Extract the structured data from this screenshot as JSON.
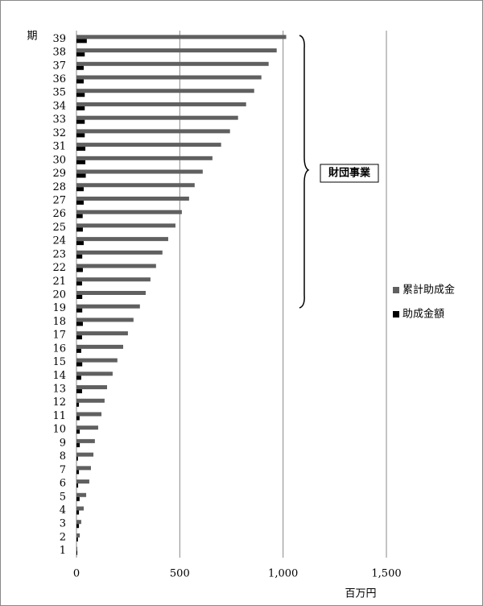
{
  "chart_data": {
    "type": "hbar",
    "y_label": "期",
    "x_label": "百万円",
    "annotation": "財団事業",
    "categories": [
      "1",
      "2",
      "3",
      "4",
      "5",
      "6",
      "7",
      "8",
      "9",
      "10",
      "11",
      "12",
      "13",
      "14",
      "15",
      "16",
      "17",
      "18",
      "19",
      "20",
      "21",
      "22",
      "23",
      "24",
      "25",
      "26",
      "27",
      "28",
      "29",
      "30",
      "31",
      "32",
      "33",
      "34",
      "35",
      "36",
      "37",
      "38",
      "39"
    ],
    "series": [
      {
        "name": "累計助成金",
        "color": "#606060",
        "values": [
          4,
          16,
          23,
          35,
          47,
          62,
          70,
          82,
          89,
          105,
          121,
          136,
          148,
          175,
          198,
          226,
          249,
          276,
          307,
          335,
          358,
          385,
          416,
          444,
          479,
          510,
          545,
          572,
          611,
          658,
          700,
          743,
          782,
          821,
          860,
          895,
          930,
          969,
          1015
        ]
      },
      {
        "name": "助成金額",
        "color": "#000000",
        "values": [
          4,
          7,
          12,
          12,
          15,
          8,
          12,
          7,
          16,
          16,
          15,
          12,
          27,
          23,
          28,
          23,
          27,
          31,
          28,
          28,
          27,
          31,
          28,
          35,
          31,
          30,
          35,
          35,
          45,
          43,
          43,
          40,
          40,
          40,
          40,
          35,
          35,
          40,
          50
        ]
      }
    ],
    "xlim": [
      0,
      1500
    ],
    "xticks": [
      0,
      500,
      {
        "value": 1000,
        "label": "1,000"
      },
      {
        "value": 1500,
        "label": "1,500"
      }
    ],
    "grid": true
  }
}
